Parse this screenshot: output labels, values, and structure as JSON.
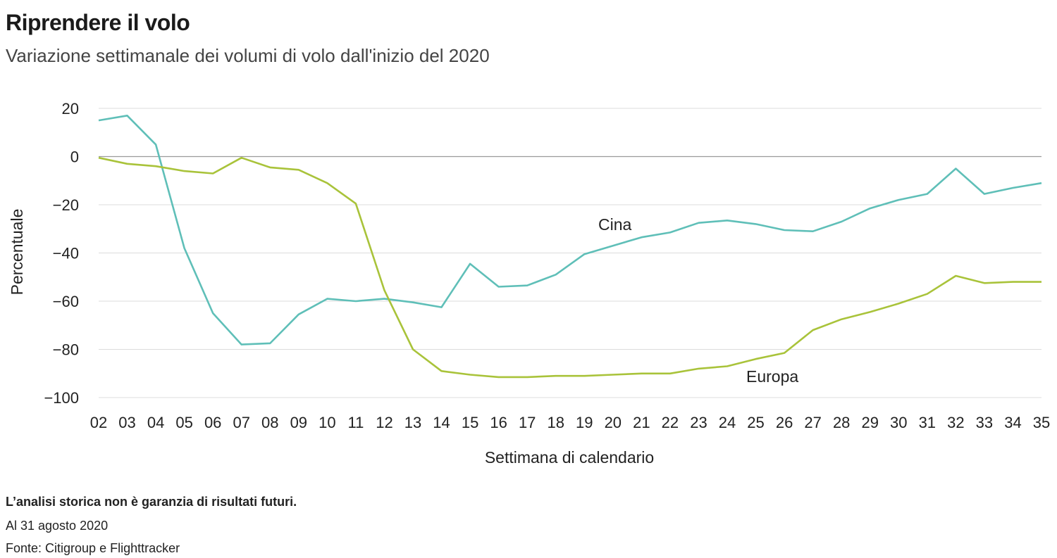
{
  "chart_data": {
    "type": "line",
    "title": "Riprendere il volo",
    "subtitle": "Variazione settimanale dei volumi di volo dall'inizio del 2020",
    "xlabel": "Settimana di calendario",
    "ylabel": "Percentuale",
    "ylim": [
      -100,
      20
    ],
    "yticks": [
      20,
      0,
      -20,
      -40,
      -60,
      -80,
      -100
    ],
    "ytick_labels": [
      "20",
      "0",
      "−20",
      "−40",
      "−60",
      "−80",
      "−100"
    ],
    "categories": [
      "02",
      "03",
      "04",
      "05",
      "06",
      "07",
      "08",
      "09",
      "10",
      "11",
      "12",
      "13",
      "14",
      "15",
      "16",
      "17",
      "18",
      "19",
      "20",
      "21",
      "22",
      "23",
      "24",
      "25",
      "26",
      "27",
      "28",
      "29",
      "30",
      "31",
      "32",
      "33",
      "34",
      "35"
    ],
    "series": [
      {
        "name": "Cina",
        "color": "#5fbfb8",
        "values": [
          15,
          17,
          5,
          -38,
          -65,
          -78,
          -77.5,
          -65.5,
          -59,
          -60,
          -59,
          -60.5,
          -62.5,
          -44.5,
          -54,
          -53.5,
          -49,
          -40.5,
          -37,
          -33.5,
          -31.5,
          -27.5,
          -26.5,
          -28,
          -30.5,
          -31,
          -27,
          -21.5,
          -18,
          -15.5,
          -5,
          -15.5,
          -13,
          -11
        ]
      },
      {
        "name": "Europa",
        "color": "#a9c33a",
        "values": [
          -0.5,
          -3,
          -4,
          -6,
          -7,
          -0.5,
          -4.5,
          -5.5,
          -11,
          -19.5,
          -55.5,
          -80,
          -89,
          -90.5,
          -91.5,
          -91.5,
          -91,
          -91,
          -90.5,
          -90,
          -90,
          -88,
          -87,
          -84,
          -81.5,
          -72,
          -67.5,
          -64.5,
          -61,
          -57,
          -49.5,
          -52.5,
          -52,
          -52
        ]
      }
    ],
    "annotations": [
      "Cina",
      "Europa"
    ]
  },
  "footer": {
    "disclaimer": "L’analisi storica non è garanzia di risultati futuri.",
    "date": "Al 31 agosto 2020",
    "source": "Fonte: Citigroup e Flighttracker"
  }
}
